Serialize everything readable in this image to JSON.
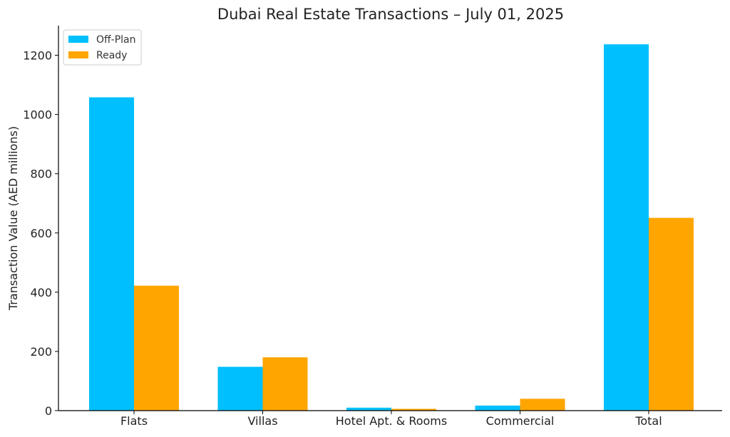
{
  "chart_data": {
    "type": "bar",
    "title": "Dubai Real Estate Transactions – July 01, 2025",
    "xlabel": "",
    "ylabel": "Transaction Value (AED millions)",
    "categories": [
      "Flats",
      "Villas",
      "Hotel Apt. & Rooms",
      "Commercial",
      "Total"
    ],
    "series": [
      {
        "name": "Off-Plan",
        "color": "#00bfff",
        "values": [
          1058,
          148,
          10,
          17,
          1237
        ]
      },
      {
        "name": "Ready",
        "color": "#ffa500",
        "values": [
          422,
          180,
          6,
          40,
          651
        ]
      }
    ],
    "ylim": [
      0,
      1300
    ],
    "yticks": [
      0,
      200,
      400,
      600,
      800,
      1000,
      1200
    ],
    "legend": "top-left",
    "grid": false
  }
}
